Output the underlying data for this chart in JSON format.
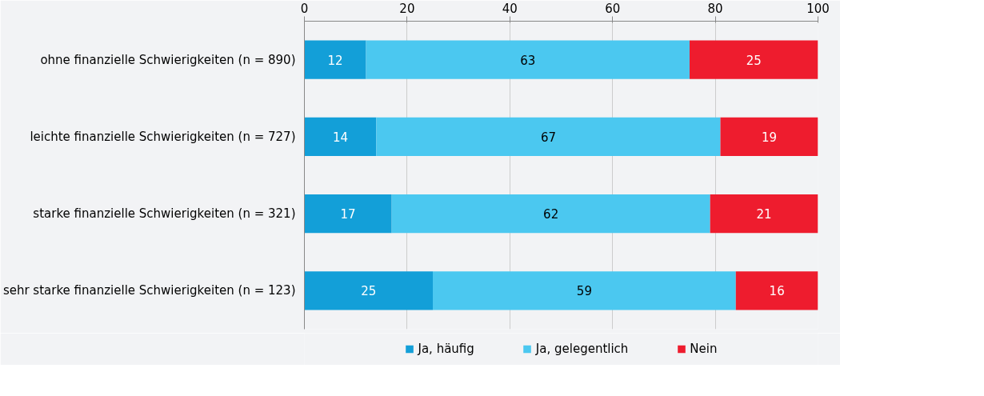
{
  "chart_data": {
    "type": "bar",
    "orientation": "horizontal",
    "stacked": true,
    "categories": [
      "ohne finanzielle Schwierigkeiten (n = 890)",
      "leichte finanzielle Schwierigkeiten (n = 727)",
      "starke finanzielle Schwierigkeiten (n = 321)",
      "sehr starke finanzielle Schwierigkeiten (n = 123)"
    ],
    "series": [
      {
        "name": "Ja, häufig",
        "color": "#139fd8",
        "values": [
          12,
          14,
          17,
          25
        ]
      },
      {
        "name": "Ja, gelegentlich",
        "color": "#4bc8f0",
        "values": [
          63,
          67,
          62,
          59
        ]
      },
      {
        "name": "Nein",
        "color": "#ee1c2e",
        "values": [
          25,
          19,
          21,
          16
        ]
      }
    ],
    "xlim": [
      0,
      100
    ],
    "xticks": [
      0,
      20,
      40,
      60,
      80,
      100
    ],
    "grid": "x",
    "legend": "bottom",
    "data_labels": true
  }
}
